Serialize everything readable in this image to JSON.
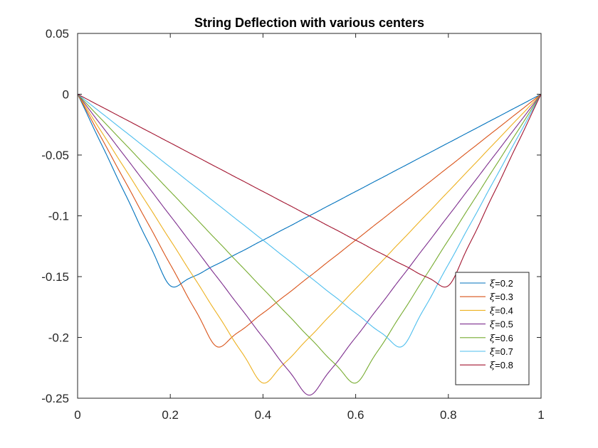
{
  "chart_data": {
    "type": "line",
    "title": "String Deflection with various centers",
    "xlabel": "",
    "ylabel": "",
    "xlim": [
      0,
      1
    ],
    "ylim": [
      -0.25,
      0.05
    ],
    "x_ticks": [
      0,
      0.2,
      0.4,
      0.6,
      0.8,
      1
    ],
    "x_tick_labels": [
      "0",
      "0.2",
      "0.4",
      "0.6",
      "0.8",
      "1"
    ],
    "y_ticks": [
      0.05,
      0,
      -0.05,
      -0.1,
      -0.15,
      -0.2,
      -0.25
    ],
    "y_tick_labels": [
      "0.05",
      "0",
      "-0.05",
      "-0.1",
      "-0.15",
      "-0.2",
      "-0.25"
    ],
    "grid": false,
    "legend_position": "bottom-right",
    "legend_symbol": "ξ",
    "series": [
      {
        "name": "=0.2",
        "center": 0.2,
        "color": "#0072BD"
      },
      {
        "name": "=0.3",
        "center": 0.3,
        "color": "#D95319"
      },
      {
        "name": "=0.4",
        "center": 0.4,
        "color": "#EDB120"
      },
      {
        "name": "=0.5",
        "center": 0.5,
        "color": "#7E2F8E"
      },
      {
        "name": "=0.6",
        "center": 0.6,
        "color": "#77AC30"
      },
      {
        "name": "=0.7",
        "center": 0.7,
        "color": "#4DBEEE"
      },
      {
        "name": "=0.8",
        "center": 0.8,
        "color": "#A2142F"
      }
    ]
  }
}
